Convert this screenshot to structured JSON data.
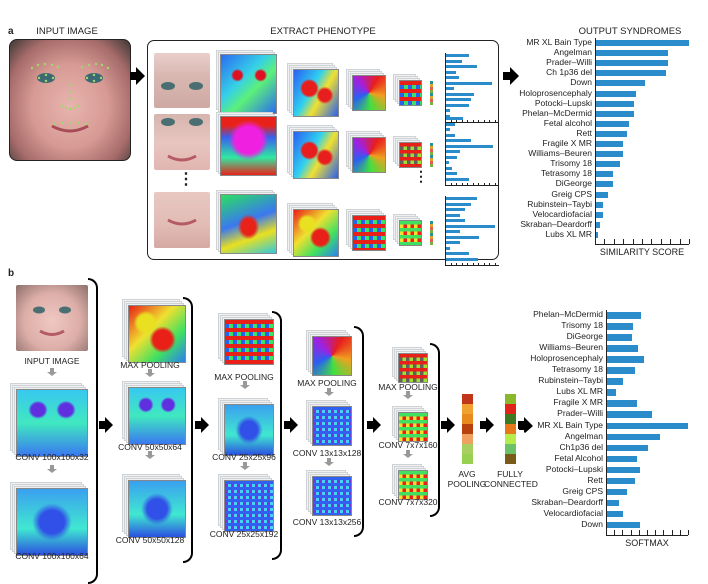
{
  "panel_a": {
    "label": "a",
    "input_title": "INPUT IMAGE",
    "extract_title": "EXTRACT PHENOTYPE",
    "output_title": "OUTPUT SYNDROMES",
    "ellipsis": "⋮"
  },
  "panel_b": {
    "label": "b",
    "input_label": "INPUT IMAGE",
    "layers": [
      {
        "label": "CONV 100x100x32"
      },
      {
        "label": "CONV 100x100x64"
      },
      {
        "label": "MAX POOLING"
      },
      {
        "label": "CONV 50x50x64"
      },
      {
        "label": "CONV 50x50x128"
      },
      {
        "label": "MAX POOLING"
      },
      {
        "label": "CONV 25x25x96"
      },
      {
        "label": "CONV 25x25x192"
      },
      {
        "label": "MAX POOLING"
      },
      {
        "label": "CONV 13x13x128"
      },
      {
        "label": "CONV 13x13x256"
      },
      {
        "label": "MAX POOLING"
      },
      {
        "label": "CONV 7x7x160"
      },
      {
        "label": "CONV 7x7x320"
      }
    ],
    "avg_pooling": "AVG\nPOOLING",
    "avg_pooling_l1": "AVG",
    "avg_pooling_l2": "POOLING",
    "fc_l1": "FULLY",
    "fc_l2": "CONNECTED",
    "avg_colors": [
      "#c1361b",
      "#f0a130",
      "#e98a1f",
      "#b8420f",
      "#f0a060",
      "#a8d060",
      "#98d050"
    ],
    "fc_colors": [
      "#8bb82a",
      "#e0241b",
      "#3e7a23",
      "#e4781a",
      "#b5ec4a",
      "#6cc068",
      "#7a5a18"
    ]
  },
  "chart_data": [
    {
      "type": "bar",
      "orientation": "horizontal",
      "title": "OUTPUT SYNDROMES",
      "xlabel": "SIMILARITY SCORE",
      "ylabel": "",
      "xlim": [
        0,
        1
      ],
      "ticks": 10,
      "categories": [
        "MR XL Bain Type",
        "Angelman",
        "Prader–Willi",
        "Ch 1p36 del",
        "Down",
        "Holoprosencephaly",
        "Potocki–Lupski",
        "Phelan–McDermid",
        "Fetal alcohol",
        "Rett",
        "Fragile X MR",
        "Williams–Beuren",
        "Trisomy 18",
        "Tetrasomy 18",
        "DiGeorge",
        "Greig CPS",
        "Rubinstein–Taybi",
        "Velocardiofacial",
        "Skraban–Deardorff",
        "Lubs XL MR"
      ],
      "values": [
        0.99,
        0.77,
        0.77,
        0.74,
        0.52,
        0.43,
        0.4,
        0.4,
        0.35,
        0.33,
        0.29,
        0.29,
        0.26,
        0.18,
        0.18,
        0.13,
        0.07,
        0.07,
        0.04,
        0.02
      ]
    },
    {
      "type": "bar",
      "orientation": "horizontal",
      "title": "",
      "xlabel": "SOFTMAX",
      "ylabel": "",
      "xlim": [
        0,
        1
      ],
      "ticks": 10,
      "highlight": "MR XL Bain Type",
      "categories": [
        "Phelan–McDermid",
        "Trisomy 18",
        "DiGeorge",
        "Williams–Beuren",
        "Holoprosencephaly",
        "Tetrasomy 18",
        "Rubinstein–Taybi",
        "Lubs XL MR",
        "Fragile X MR",
        "Prader–Willi",
        "MR XL Bain Type",
        "Angelman",
        "Ch1p36 del",
        "Fetal Alcohol",
        "Potocki–Lupski",
        "Rett",
        "Greig CPS",
        "Skraban–Deardorff",
        "Velocardiofacial",
        "Down"
      ],
      "values": [
        0.41,
        0.32,
        0.31,
        0.38,
        0.45,
        0.34,
        0.2,
        0.11,
        0.36,
        0.55,
        0.99,
        0.65,
        0.5,
        0.36,
        0.4,
        0.34,
        0.24,
        0.15,
        0.2,
        0.4
      ]
    },
    {
      "type": "bar",
      "orientation": "horizontal",
      "title": "",
      "description": "per-region mini similarity charts (3)",
      "series": [
        {
          "name": "region-1",
          "values": [
            0.45,
            0.32,
            0.62,
            0.2,
            0.26,
            0.92,
            0.15,
            0.56,
            0.5,
            0.45,
            0.08,
            0.08
          ]
        },
        {
          "name": "region-2",
          "values": [
            0.34,
            0.17,
            0.08,
            0.17,
            0.5,
            0.94,
            0.27,
            0.22,
            0.05,
            0.12,
            0.22,
            0.46
          ]
        },
        {
          "name": "region-3",
          "values": [
            0.62,
            0.5,
            0.38,
            0.27,
            0.38,
            0.98,
            0.27,
            0.65,
            0.27,
            0.08,
            0.46,
            0.64
          ]
        }
      ]
    }
  ]
}
